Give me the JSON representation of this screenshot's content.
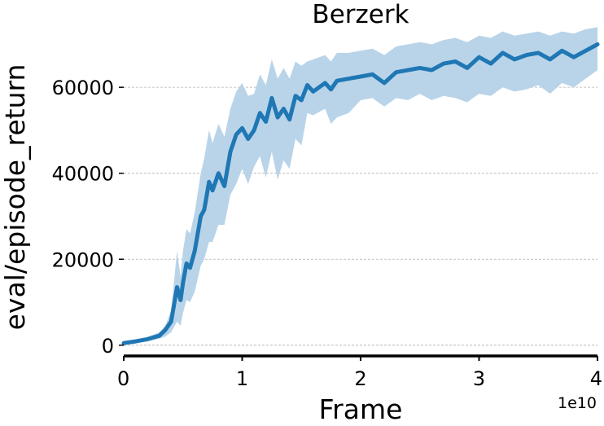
{
  "chart_data": {
    "type": "line",
    "title": "Berzerk",
    "xlabel": "Frame",
    "ylabel": "eval/episode_return",
    "x_offset_label": "1e10",
    "xlim": [
      0,
      4
    ],
    "ylim": [
      -2500,
      75000
    ],
    "x_ticks": [
      0,
      1,
      2,
      3,
      4
    ],
    "x_tick_labels": [
      "0",
      "1",
      "2",
      "3",
      "4"
    ],
    "y_ticks": [
      0,
      20000,
      40000,
      60000
    ],
    "y_tick_labels": [
      "0",
      "20000",
      "40000",
      "60000"
    ],
    "grid": "horizontal dashed",
    "colors": {
      "line": "#1f77b4",
      "band": "#b9d4e9",
      "grid": "#b0b0b0"
    },
    "series": [
      {
        "x": [
          0.0,
          0.1,
          0.2,
          0.3,
          0.35,
          0.4,
          0.45,
          0.48,
          0.5,
          0.53,
          0.56,
          0.6,
          0.65,
          0.68,
          0.72,
          0.75,
          0.8,
          0.85,
          0.9,
          0.95,
          1.0,
          1.05,
          1.1,
          1.15,
          1.2,
          1.25,
          1.3,
          1.35,
          1.4,
          1.45,
          1.5,
          1.55,
          1.6,
          1.7,
          1.75,
          1.8,
          1.9,
          2.0,
          2.1,
          2.2,
          2.3,
          2.4,
          2.5,
          2.6,
          2.7,
          2.8,
          2.9,
          3.0,
          3.1,
          3.2,
          3.3,
          3.4,
          3.5,
          3.6,
          3.7,
          3.8,
          3.9,
          4.0
        ],
        "y": [
          500,
          900,
          1400,
          2200,
          3500,
          5500,
          13500,
          10500,
          14500,
          19000,
          18000,
          22000,
          30000,
          31500,
          38000,
          36000,
          40000,
          37000,
          45000,
          49000,
          50500,
          48000,
          50000,
          54000,
          52000,
          57500,
          53000,
          55000,
          52500,
          58000,
          57000,
          60500,
          59000,
          61000,
          59500,
          61500,
          62000,
          62500,
          63000,
          61000,
          63500,
          64000,
          64500,
          64000,
          65500,
          66000,
          64500,
          67000,
          65500,
          68000,
          66500,
          67500,
          68000,
          66500,
          68500,
          67000,
          68500,
          70000
        ],
        "y_lower": [
          200,
          500,
          900,
          1500,
          2000,
          3000,
          5500,
          4500,
          7500,
          10500,
          10000,
          12500,
          18500,
          20000,
          24000,
          24000,
          28000,
          28000,
          35000,
          37500,
          41000,
          37500,
          41500,
          44000,
          39000,
          45000,
          38500,
          43000,
          41000,
          48000,
          46500,
          54000,
          53500,
          55000,
          51500,
          53000,
          54000,
          57000,
          57500,
          55500,
          57500,
          57000,
          58500,
          57000,
          58000,
          57500,
          56500,
          58500,
          58000,
          60000,
          59000,
          59500,
          60500,
          58500,
          61000,
          60000,
          62000,
          64000
        ],
        "y_upper": [
          800,
          1300,
          1900,
          3000,
          4500,
          8000,
          22000,
          16000,
          22000,
          27000,
          26000,
          31000,
          40000,
          43500,
          50000,
          47000,
          51500,
          48500,
          55000,
          59000,
          61000,
          58000,
          58500,
          63000,
          60500,
          66500,
          62000,
          64500,
          62000,
          66000,
          65000,
          66000,
          66500,
          67500,
          66000,
          68000,
          68000,
          68500,
          69000,
          67500,
          69500,
          70000,
          70500,
          70000,
          71000,
          71500,
          70500,
          72000,
          71500,
          73000,
          72000,
          72500,
          73000,
          72000,
          73000,
          72500,
          73500,
          74000
        ]
      }
    ]
  }
}
